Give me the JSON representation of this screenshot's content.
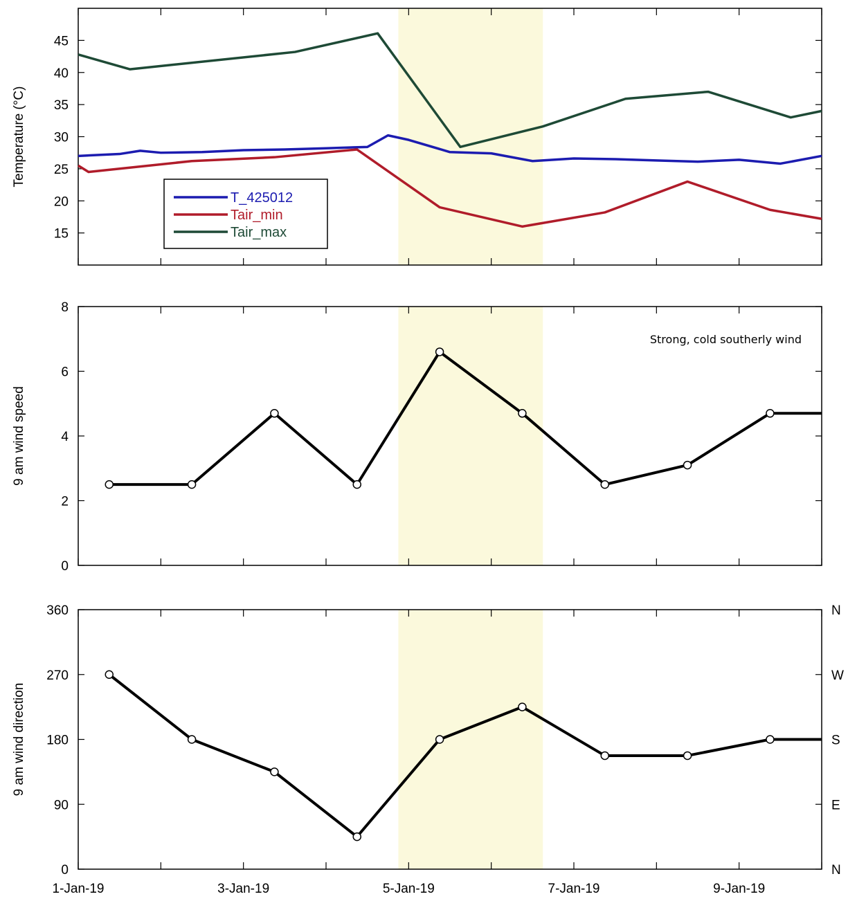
{
  "chart_data": [
    {
      "type": "line",
      "ylabel": "Temperature (°C)",
      "xlim": [
        "2019-01-01",
        "2019-01-10"
      ],
      "ylim": [
        10,
        50
      ],
      "yticks": [
        15,
        20,
        25,
        30,
        35,
        40,
        45
      ],
      "legend_position": "lower-left",
      "series": [
        {
          "name": "T_425012",
          "color": "#1c1cb0",
          "x": [
            "2019-01-01 00:00",
            "2019-01-01 12:00",
            "2019-01-01 18:00",
            "2019-01-02 00:00",
            "2019-01-02 12:00",
            "2019-01-03 00:00",
            "2019-01-03 12:00",
            "2019-01-04 00:00",
            "2019-01-04 12:00",
            "2019-01-04 18:00",
            "2019-01-05 00:00",
            "2019-01-05 12:00",
            "2019-01-06 00:00",
            "2019-01-06 12:00",
            "2019-01-07 00:00",
            "2019-01-07 12:00",
            "2019-01-08 00:00",
            "2019-01-08 12:00",
            "2019-01-09 00:00",
            "2019-01-09 12:00",
            "2019-01-10 00:00"
          ],
          "values": [
            27.0,
            27.3,
            27.8,
            27.5,
            27.6,
            27.9,
            28.0,
            28.2,
            28.4,
            30.2,
            29.5,
            27.6,
            27.4,
            26.2,
            26.6,
            26.5,
            26.3,
            26.1,
            26.4,
            25.8,
            27.0
          ]
        },
        {
          "name": "Tair_min",
          "color": "#b01c2a",
          "x": [
            "2019-01-01 00:00",
            "2019-01-01 03:00",
            "2019-01-02 09:00",
            "2019-01-03 09:00",
            "2019-01-04 09:00",
            "2019-01-05 09:00",
            "2019-01-06 09:00",
            "2019-01-07 09:00",
            "2019-01-08 09:00",
            "2019-01-09 09:00",
            "2019-01-10 00:00"
          ],
          "values": [
            25.5,
            24.5,
            26.2,
            26.8,
            28.0,
            19.0,
            16.0,
            18.2,
            23.0,
            18.6,
            17.2
          ]
        },
        {
          "name": "Tair_max",
          "color": "#1e4a36",
          "x": [
            "2019-01-01 00:00",
            "2019-01-01 15:00",
            "2019-01-03 15:00",
            "2019-01-04 15:00",
            "2019-01-05 15:00",
            "2019-01-06 15:00",
            "2019-01-07 15:00",
            "2019-01-08 15:00",
            "2019-01-09 15:00",
            "2019-01-10 00:00"
          ],
          "values": [
            42.8,
            40.5,
            43.2,
            46.1,
            28.4,
            31.6,
            35.9,
            37.0,
            33.0,
            34.0
          ]
        }
      ]
    },
    {
      "type": "line",
      "ylabel": "9 am wind speed",
      "ylim": [
        0,
        8
      ],
      "yticks": [
        0,
        2,
        4,
        6,
        8
      ],
      "annotation": "Strong, cold southerly wind",
      "series": [
        {
          "name": "",
          "color": "#000000",
          "x": [
            "2019-01-01 09:00",
            "2019-01-02 09:00",
            "2019-01-03 09:00",
            "2019-01-04 09:00",
            "2019-01-05 09:00",
            "2019-01-06 09:00",
            "2019-01-07 09:00",
            "2019-01-08 09:00",
            "2019-01-09 09:00",
            "2019-01-10 00:00"
          ],
          "values": [
            2.5,
            2.5,
            4.7,
            2.5,
            6.6,
            4.7,
            2.5,
            3.1,
            4.7,
            4.7
          ]
        }
      ]
    },
    {
      "type": "line",
      "ylabel": "9 am wind direction",
      "ylim": [
        0,
        360
      ],
      "yticks": [
        0,
        90,
        180,
        270,
        360
      ],
      "right_labels": [
        {
          "value": 0,
          "label": "N"
        },
        {
          "value": 90,
          "label": "E"
        },
        {
          "value": 180,
          "label": "S"
        },
        {
          "value": 270,
          "label": "W"
        },
        {
          "value": 360,
          "label": "N"
        }
      ],
      "series": [
        {
          "name": "",
          "color": "#000000",
          "x": [
            "2019-01-01 09:00",
            "2019-01-02 09:00",
            "2019-01-03 09:00",
            "2019-01-04 09:00",
            "2019-01-05 09:00",
            "2019-01-06 09:00",
            "2019-01-07 09:00",
            "2019-01-08 09:00",
            "2019-01-09 09:00",
            "2019-01-10 00:00"
          ],
          "values": [
            270,
            180,
            135,
            45,
            180,
            225,
            157.5,
            157.5,
            180,
            180
          ]
        }
      ],
      "xtick_labels": [
        "1-Jan-19",
        "3-Jan-19",
        "5-Jan-19",
        "7-Jan-19",
        "9-Jan-19"
      ]
    }
  ],
  "highlight": {
    "start": "2019-01-04 21:00",
    "end": "2019-01-06 15:00",
    "color": "#fbf9dc"
  }
}
